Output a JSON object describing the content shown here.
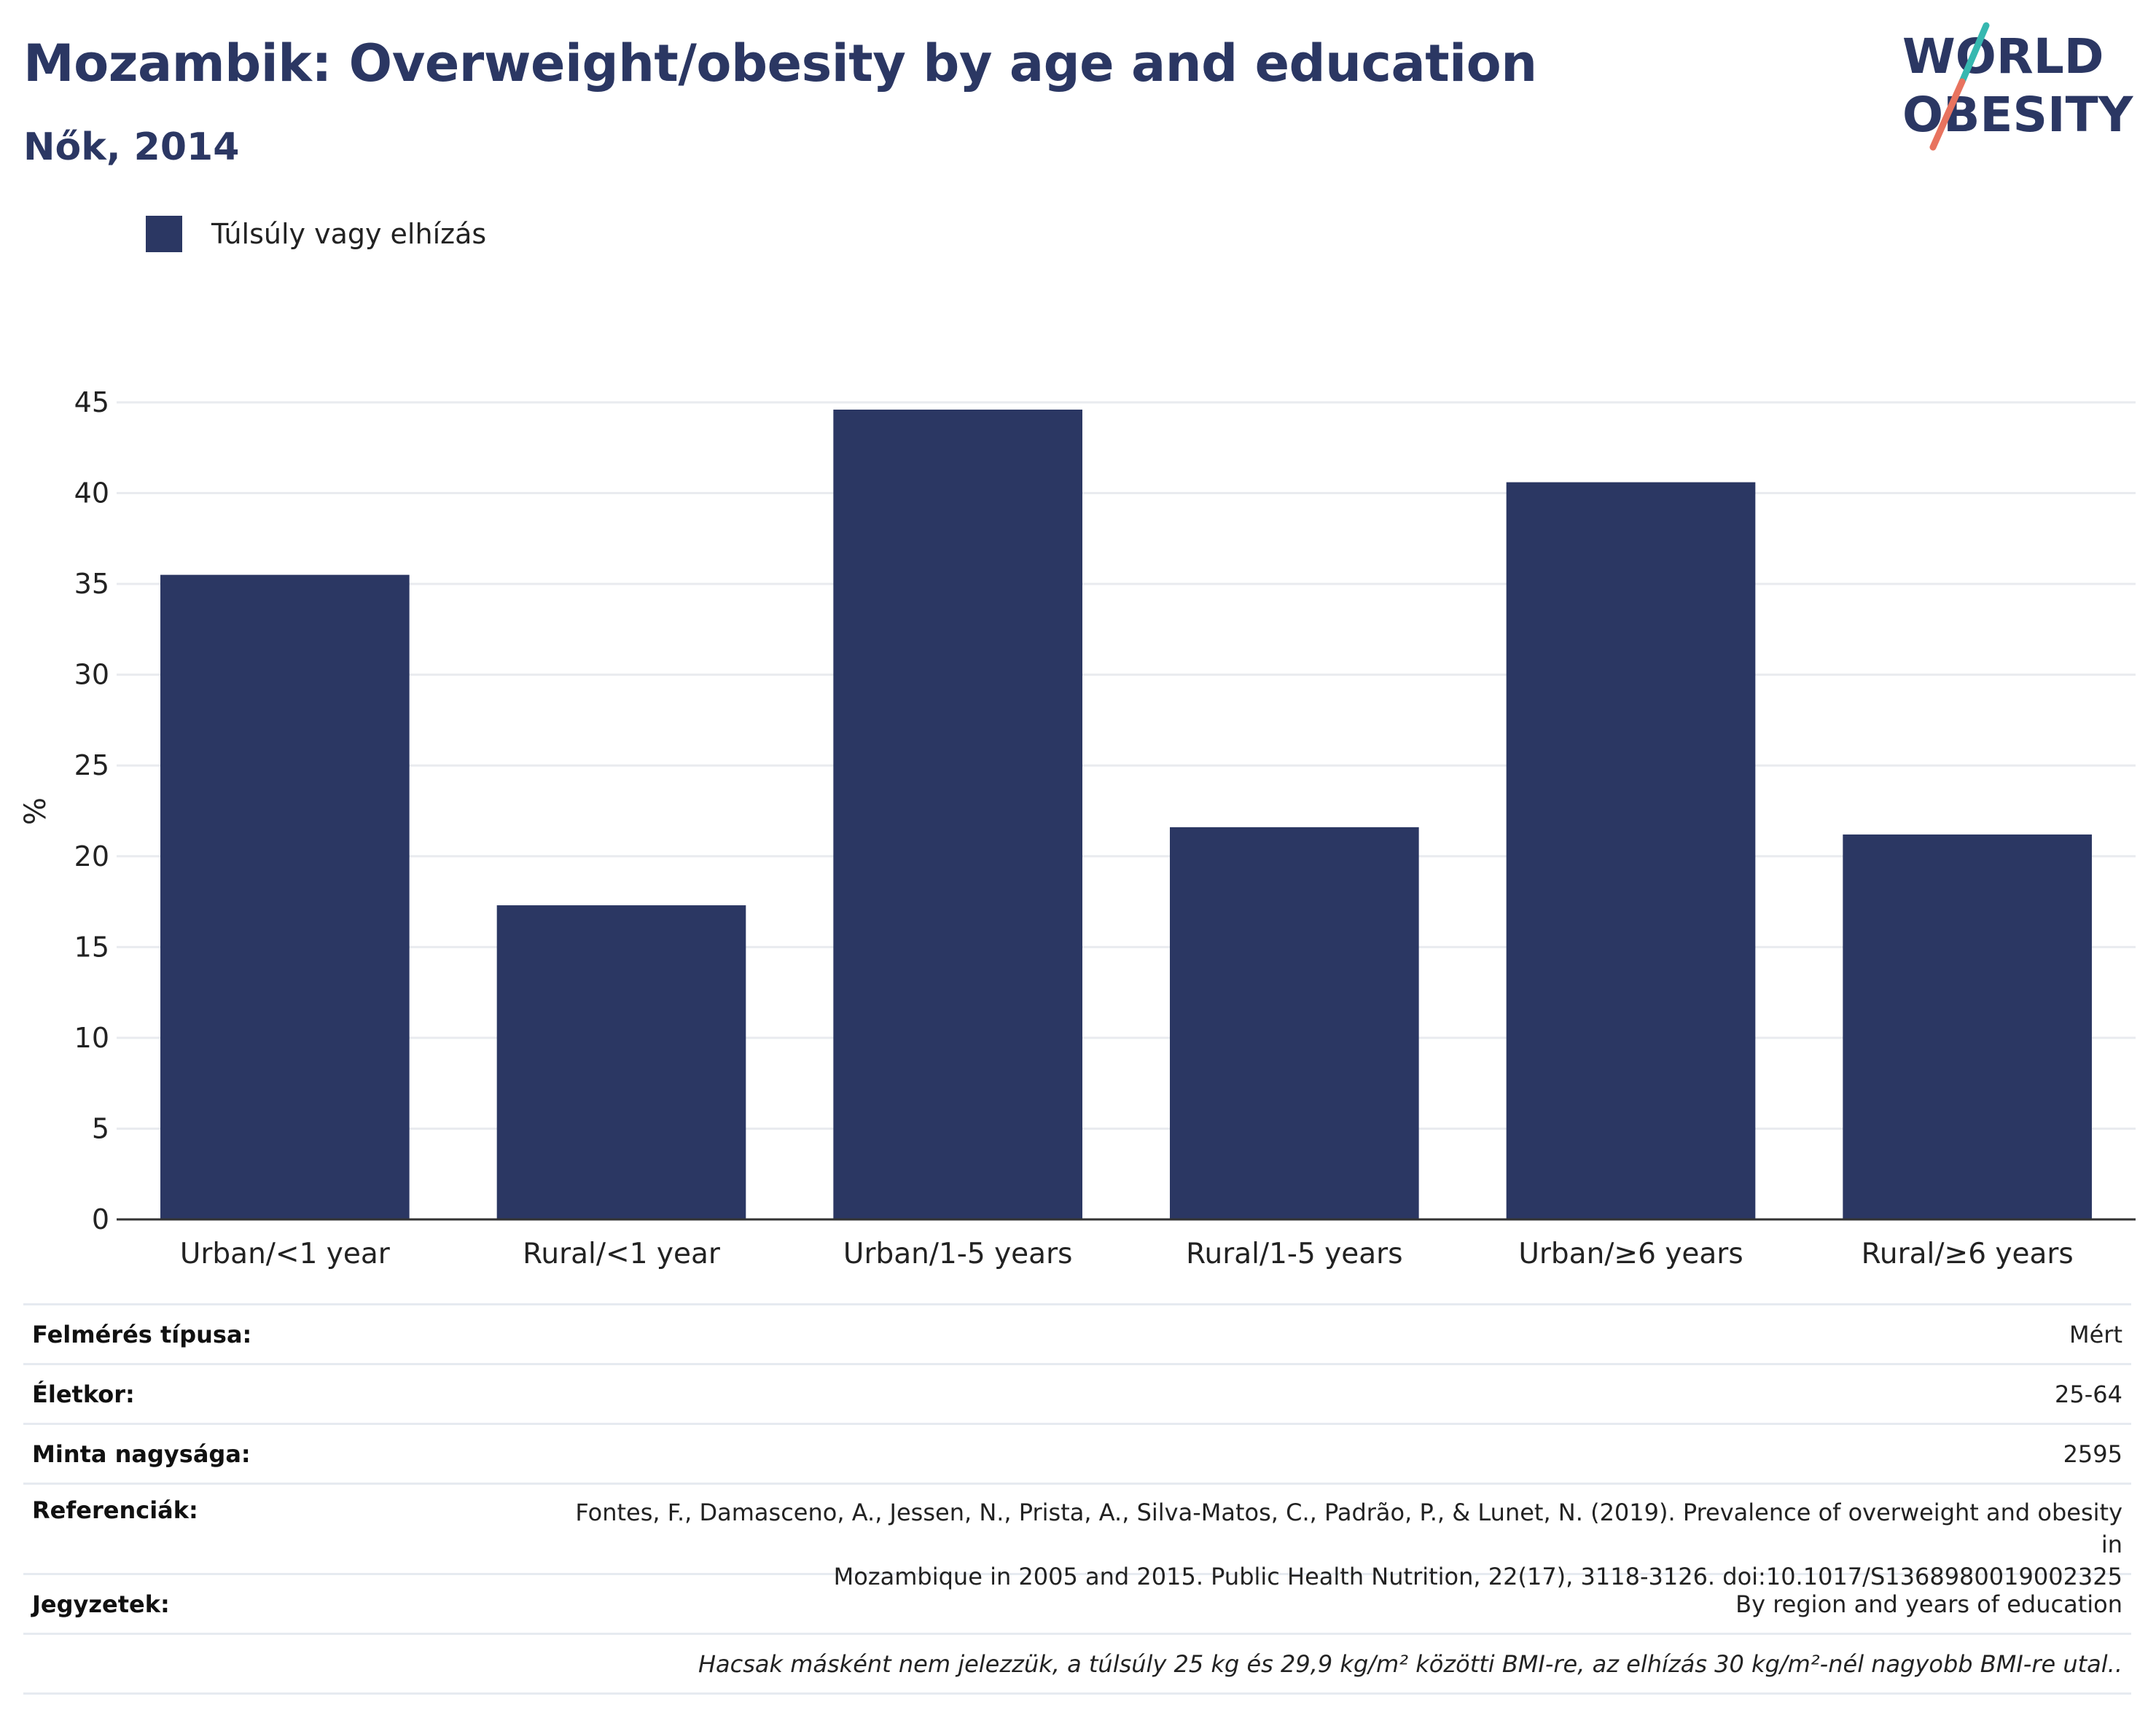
{
  "title": "Mozambik: Overweight/obesity by age and education",
  "subtitle": "Nők, 2014",
  "logo": {
    "line1": "WORLD",
    "line2": "OBESITY",
    "slash_top_color": "#36b8b0",
    "slash_bottom_color": "#e8735f",
    "text_color": "#2b3763"
  },
  "legend": [
    {
      "label": "Túlsúly vagy elhízás",
      "color": "#2b3763"
    }
  ],
  "chart_data": {
    "type": "bar",
    "categories": [
      "Urban/<1 year",
      "Rural/<1 year",
      "Urban/1-5 years",
      "Rural/1-5 years",
      "Urban/≥6 years",
      "Rural/≥6 years"
    ],
    "series": [
      {
        "name": "Túlsúly vagy elhízás",
        "values": [
          35.5,
          17.3,
          44.6,
          21.6,
          40.6,
          21.2
        ],
        "color": "#2b3763"
      }
    ],
    "ylabel": "%",
    "ylim": [
      0,
      45
    ],
    "yticks": [
      "0",
      "5",
      "10",
      "15",
      "20",
      "25",
      "30",
      "35",
      "40",
      "45"
    ],
    "grid": true,
    "legend_position": "top-left"
  },
  "info": {
    "survey_type": {
      "label": "Felmérés típusa:",
      "value": "Mért"
    },
    "age": {
      "label": "Életkor:",
      "value": "25-64"
    },
    "sample_size": {
      "label": "Minta nagysága:",
      "value": "2595"
    },
    "references": {
      "label": "Referenciák:",
      "line1": "Fontes, F., Damasceno, A., Jessen, N., Prista, A., Silva-Matos, C., Padrão, P., & Lunet, N. (2019). Prevalence of overweight and obesity in",
      "line2": "Mozambique in 2005 and 2015. Public Health Nutrition, 22(17), 3118-3126. doi:10.1017/S1368980019002325"
    },
    "notes": {
      "label": "Jegyzetek:",
      "value": "By region and years of education"
    },
    "footnote": "Hacsak másként nem jelezzük, a túlsúly 25 kg és 29,9 kg/m² közötti BMI-re, az elhízás 30 kg/m²-nél nagyobb BMI-re utal.."
  }
}
